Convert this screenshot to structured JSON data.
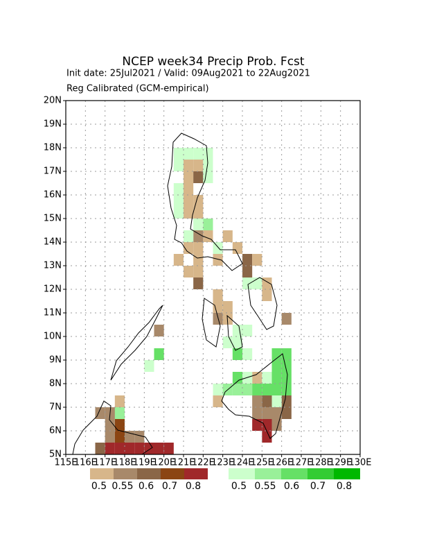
{
  "chart_data": {
    "type": "grid-map",
    "title": "NCEP week34 Precip Prob. Fcst",
    "subtitle": "Init date: 25Jul2021 / Valid: 09Aug2021 to 22Aug2021",
    "subtitle2": "Reg Calibrated (GCM-empirical)",
    "xlim": [
      115,
      130
    ],
    "ylim": [
      5,
      20
    ],
    "cell_size": 0.5,
    "grid": true,
    "xticks": [
      {
        "value": 115,
        "label": "115E"
      },
      {
        "value": 116,
        "label": "116E"
      },
      {
        "value": 117,
        "label": "117E"
      },
      {
        "value": 118,
        "label": "118E"
      },
      {
        "value": 119,
        "label": "119E"
      },
      {
        "value": 120,
        "label": "120E"
      },
      {
        "value": 121,
        "label": "121E"
      },
      {
        "value": 122,
        "label": "122E"
      },
      {
        "value": 123,
        "label": "123E"
      },
      {
        "value": 124,
        "label": "124E"
      },
      {
        "value": 125,
        "label": "125E"
      },
      {
        "value": 126,
        "label": "126E"
      },
      {
        "value": 127,
        "label": "127E"
      },
      {
        "value": 128,
        "label": "128E"
      },
      {
        "value": 129,
        "label": "129E"
      },
      {
        "value": 130,
        "label": "130E"
      }
    ],
    "yticks": [
      {
        "value": 5,
        "label": "5N"
      },
      {
        "value": 6,
        "label": "6N"
      },
      {
        "value": 7,
        "label": "7N"
      },
      {
        "value": 8,
        "label": "8N"
      },
      {
        "value": 9,
        "label": "9N"
      },
      {
        "value": 10,
        "label": "10N"
      },
      {
        "value": 11,
        "label": "11N"
      },
      {
        "value": 12,
        "label": "12N"
      },
      {
        "value": 13,
        "label": "13N"
      },
      {
        "value": 14,
        "label": "14N"
      },
      {
        "value": 15,
        "label": "15N"
      },
      {
        "value": 16,
        "label": "16N"
      },
      {
        "value": 17,
        "label": "17N"
      },
      {
        "value": 18,
        "label": "18N"
      },
      {
        "value": 19,
        "label": "19N"
      },
      {
        "value": 20,
        "label": "20N"
      }
    ],
    "levels": [
      0.5,
      0.55,
      0.6,
      0.7,
      0.8
    ],
    "series": [
      {
        "colors": [
          "#d7b68a",
          "#a8896a",
          "#8a6647",
          "#8b4513",
          "#a0282a"
        ],
        "cells": [
          [
            121,
            17,
            0.5
          ],
          [
            121.5,
            17,
            0.5
          ],
          [
            121,
            16.5,
            0.5
          ],
          [
            121.5,
            16.5,
            0.6
          ],
          [
            121,
            16,
            0.5
          ],
          [
            121,
            15.5,
            0.5
          ],
          [
            121.5,
            15.5,
            0.5
          ],
          [
            121,
            15,
            0.5
          ],
          [
            121.5,
            15,
            0.5
          ],
          [
            121.5,
            14,
            0.55
          ],
          [
            122,
            14,
            0.5
          ],
          [
            121,
            13.5,
            0.5
          ],
          [
            121.5,
            13.5,
            0.5
          ],
          [
            120.5,
            13,
            0.5
          ],
          [
            121.5,
            13,
            0.5
          ],
          [
            121,
            12.5,
            0.5
          ],
          [
            121.5,
            12.5,
            0.5
          ],
          [
            121.5,
            12,
            0.6
          ],
          [
            122.5,
            13,
            0.5
          ],
          [
            123,
            14,
            0.5
          ],
          [
            123.5,
            13.5,
            0.5
          ],
          [
            124,
            13,
            0.6
          ],
          [
            124,
            12.5,
            0.6
          ],
          [
            124.5,
            13,
            0.5
          ],
          [
            125,
            12,
            0.5
          ],
          [
            125,
            11.5,
            0.5
          ],
          [
            122.5,
            11,
            0.5
          ],
          [
            122.5,
            10.5,
            0.55
          ],
          [
            123,
            10.5,
            0.5
          ],
          [
            122.5,
            11.5,
            0.5
          ],
          [
            123,
            11,
            0.5
          ],
          [
            126,
            10.5,
            0.55
          ],
          [
            119.5,
            10,
            0.55
          ],
          [
            124.5,
            8,
            0.5
          ],
          [
            122.5,
            7,
            0.5
          ],
          [
            124.5,
            7,
            0.55
          ],
          [
            125,
            7,
            0.6
          ],
          [
            124.5,
            6.5,
            0.55
          ],
          [
            125,
            6.5,
            0.55
          ],
          [
            125.5,
            6.5,
            0.55
          ],
          [
            126,
            7,
            0.6
          ],
          [
            126,
            6.5,
            0.6
          ],
          [
            124.5,
            6,
            0.8
          ],
          [
            125,
            6,
            0.8
          ],
          [
            125,
            5.5,
            0.8
          ],
          [
            125.5,
            6,
            0.55
          ],
          [
            116.5,
            6.5,
            0.55
          ],
          [
            117,
            6.5,
            0.55
          ],
          [
            117.5,
            6.5,
            0.7
          ],
          [
            117.5,
            6,
            0.7
          ],
          [
            117,
            6,
            0.55
          ],
          [
            117,
            5.5,
            0.55
          ],
          [
            117.5,
            5.5,
            0.7
          ],
          [
            118,
            5.5,
            0.55
          ],
          [
            118.5,
            5.5,
            0.55
          ],
          [
            117.5,
            7,
            0.5
          ],
          [
            116.5,
            5,
            0.6
          ],
          [
            117,
            5,
            0.8
          ],
          [
            117.5,
            5,
            0.8
          ],
          [
            118,
            5,
            0.8
          ],
          [
            118.5,
            5,
            0.8
          ],
          [
            119,
            5,
            0.8
          ],
          [
            119.5,
            5,
            0.8
          ],
          [
            120,
            5,
            0.8
          ]
        ]
      },
      {
        "colors": [
          "#ccffcc",
          "#99f099",
          "#66e066",
          "#33cc33",
          "#00b800"
        ],
        "cells": [
          [
            120.5,
            17.5,
            0.5
          ],
          [
            121,
            17.5,
            0.5
          ],
          [
            121.5,
            17.5,
            0.5
          ],
          [
            122,
            17.5,
            0.5
          ],
          [
            120.5,
            17,
            0.5
          ],
          [
            122,
            17,
            0.5
          ],
          [
            122,
            16.5,
            0.5
          ],
          [
            120.5,
            16,
            0.5
          ],
          [
            120.5,
            15.5,
            0.5
          ],
          [
            120.5,
            15,
            0.5
          ],
          [
            121.5,
            14.5,
            0.5
          ],
          [
            122,
            14.5,
            0.55
          ],
          [
            121,
            14,
            0.5
          ],
          [
            122.5,
            13.5,
            0.5
          ],
          [
            124,
            12,
            0.5
          ],
          [
            124.5,
            12,
            0.5
          ],
          [
            123.5,
            10,
            0.5
          ],
          [
            124,
            10,
            0.5
          ],
          [
            123,
            9.5,
            0.5
          ],
          [
            123.5,
            9.5,
            0.5
          ],
          [
            124,
            9,
            0.5
          ],
          [
            123.5,
            9,
            0.6
          ],
          [
            119.5,
            9,
            0.6
          ],
          [
            119,
            8.5,
            0.5
          ],
          [
            123.5,
            8,
            0.6
          ],
          [
            124,
            8,
            0.5
          ],
          [
            125,
            8,
            0.5
          ],
          [
            125.5,
            8.5,
            0.6
          ],
          [
            125.5,
            8,
            0.6
          ],
          [
            126,
            8,
            0.6
          ],
          [
            126,
            7.5,
            0.6
          ],
          [
            126,
            9,
            0.6
          ],
          [
            125.5,
            9,
            0.6
          ],
          [
            126,
            8.5,
            0.6
          ],
          [
            122.5,
            7.5,
            0.5
          ],
          [
            123,
            7.5,
            0.55
          ],
          [
            123.5,
            7.5,
            0.55
          ],
          [
            124,
            7.5,
            0.55
          ],
          [
            124.5,
            7.5,
            0.6
          ],
          [
            125,
            7.5,
            0.6
          ],
          [
            125.5,
            7.5,
            0.6
          ],
          [
            125.5,
            7,
            0.5
          ],
          [
            117.5,
            6.5,
            0.55
          ]
        ]
      }
    ]
  }
}
